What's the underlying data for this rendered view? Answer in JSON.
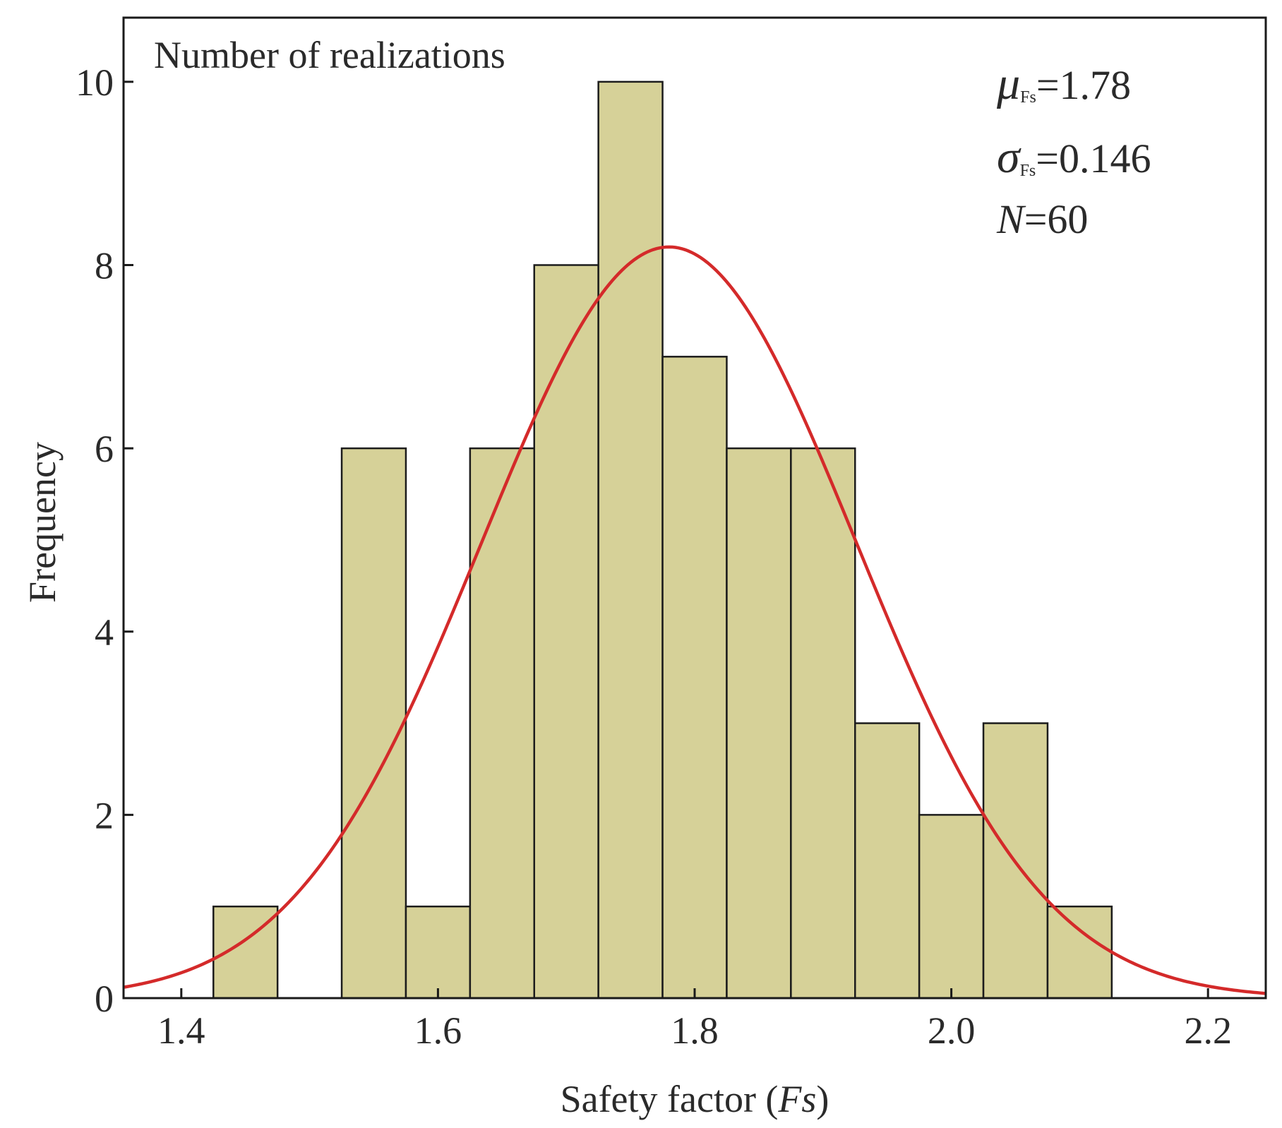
{
  "chart_data": {
    "type": "bar",
    "subtype": "histogram",
    "title": "",
    "xlabel": {
      "prefix": "Safety factor (",
      "italic": "Fs",
      "suffix": ")"
    },
    "ylabel": "Frequency",
    "corner_label": "Number of realizations",
    "xlim": [
      1.355,
      2.245
    ],
    "ylim": [
      0,
      10.7
    ],
    "xticks": [
      {
        "value": 1.4,
        "label": "1.4"
      },
      {
        "value": 1.6,
        "label": "1.6"
      },
      {
        "value": 1.8,
        "label": "1.8"
      },
      {
        "value": 2.0,
        "label": "2.0"
      },
      {
        "value": 2.2,
        "label": "2.2"
      }
    ],
    "yticks": [
      {
        "value": 0,
        "label": "0"
      },
      {
        "value": 2,
        "label": "2"
      },
      {
        "value": 4,
        "label": "4"
      },
      {
        "value": 6,
        "label": "6"
      },
      {
        "value": 8,
        "label": "8"
      },
      {
        "value": 10,
        "label": "10"
      }
    ],
    "bin_width": 0.05,
    "bins": [
      {
        "left": 1.425,
        "count": 1
      },
      {
        "left": 1.525,
        "count": 6
      },
      {
        "left": 1.575,
        "count": 1
      },
      {
        "left": 1.625,
        "count": 6
      },
      {
        "left": 1.675,
        "count": 8
      },
      {
        "left": 1.725,
        "count": 10
      },
      {
        "left": 1.775,
        "count": 7
      },
      {
        "left": 1.825,
        "count": 6
      },
      {
        "left": 1.875,
        "count": 6
      },
      {
        "left": 1.925,
        "count": 3
      },
      {
        "left": 1.975,
        "count": 2
      },
      {
        "left": 2.025,
        "count": 3
      },
      {
        "left": 2.075,
        "count": 1
      }
    ],
    "fit": {
      "type": "normal",
      "mean": 1.78,
      "std": 0.146,
      "n": 60
    },
    "annotations": {
      "mu": {
        "symbol": "μ",
        "sub": "Fs",
        "text": "=1.78"
      },
      "sigma": {
        "symbol": "σ",
        "sub": "Fs",
        "text": "=0.146"
      },
      "n": {
        "symbol": "N",
        "text": "=60"
      }
    },
    "colors": {
      "bar_fill": "#d6d198",
      "bar_edge": "#1c1c1c",
      "curve": "#d42a2a",
      "axis": "#1a1a1a"
    }
  }
}
